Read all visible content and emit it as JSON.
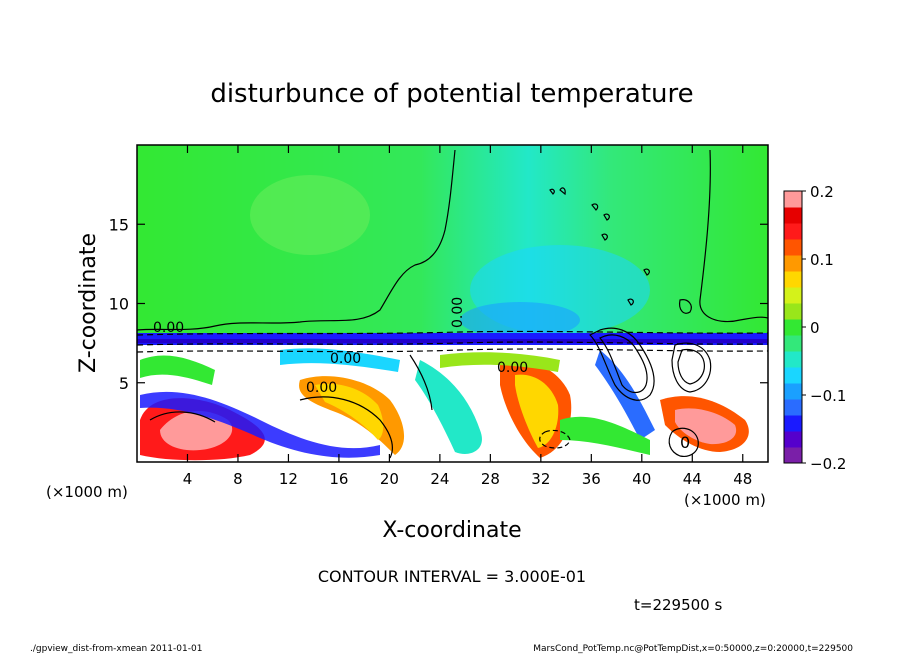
{
  "chart_data": {
    "type": "heatmap",
    "title": "disturbunce of potential temperature",
    "xlabel": "X-coordinate",
    "ylabel": "Z-coordinate",
    "x_unit_left": "(×1000 m)",
    "x_unit_right": "(×1000 m)",
    "xlim": [
      0,
      50
    ],
    "ylim": [
      0,
      20
    ],
    "x_ticks": [
      4,
      8,
      12,
      16,
      20,
      24,
      28,
      32,
      36,
      40,
      44,
      48
    ],
    "y_ticks": [
      5,
      10,
      15
    ],
    "colorbar": {
      "range": [
        -0.2,
        0.2
      ],
      "ticks": [
        "0.2",
        "0.1",
        "0",
        "−0.1",
        "−0.2"
      ],
      "tick_values": [
        0.2,
        0.1,
        0,
        -0.1,
        -0.2
      ],
      "colors": [
        "#7a1fa8",
        "#5500cc",
        "#1a1aff",
        "#2a6cff",
        "#1aa0ff",
        "#1ad6ff",
        "#22e8c8",
        "#33e87a",
        "#33e833",
        "#99e61a",
        "#d4f21a",
        "#ffd700",
        "#ff9900",
        "#ff5500",
        "#ff1a1a",
        "#e60000",
        "#ff9a9a"
      ]
    },
    "contour_labels": [
      "0.00",
      "0.00",
      "0.00",
      "0.00",
      "0.00",
      "0"
    ],
    "annotation": "CONTOUR INTERVAL = 3.000E-01",
    "time_label": "t=229500 s"
  },
  "footer": {
    "left": "./gpview_dist-from-xmean  2011-01-01",
    "right": "MarsCond_PotTemp.nc@PotTempDist,x=0:50000,z=0:20000,t=229500"
  }
}
